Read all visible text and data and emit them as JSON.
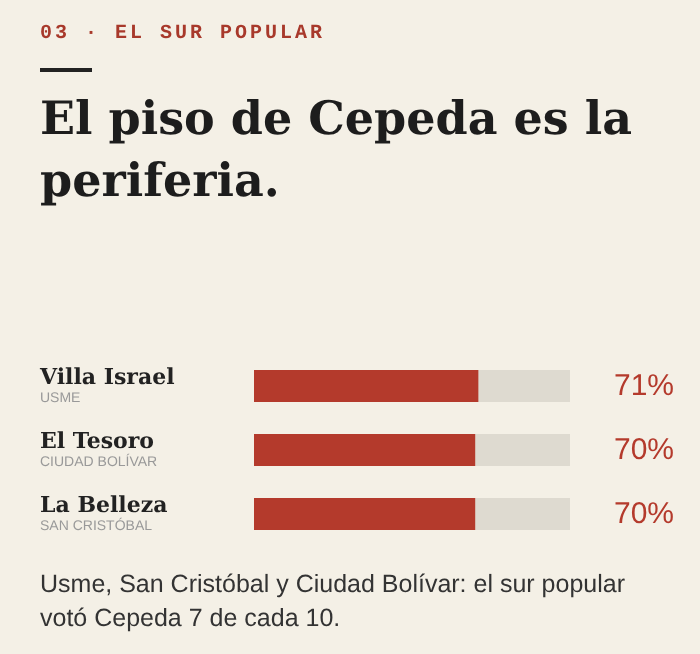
{
  "chart_data": {
    "type": "bar",
    "orientation": "horizontal",
    "subtitle": "03 · EL SUR POPULAR",
    "title": "El piso de Cepeda es la periferia.",
    "categories": [
      "Villa Israel\nUSME",
      "El Tesoro\nCIUDAD BOLÍVAR",
      "La Belleza\nSAN CRISTÓBAL"
    ],
    "values": [
      71,
      70,
      70
    ],
    "color": "#b43a2c",
    "xlim": [
      0,
      100
    ],
    "data_labels": true,
    "value_labels": [
      "71%",
      "70%",
      "70%"
    ],
    "grid": false,
    "tick_labels": "y",
    "annotations": [
      "Usme, San Cristóbal y Ciudad Bolívar: el sur popular votó Cepeda 7 de cada 10."
    ]
  }
}
